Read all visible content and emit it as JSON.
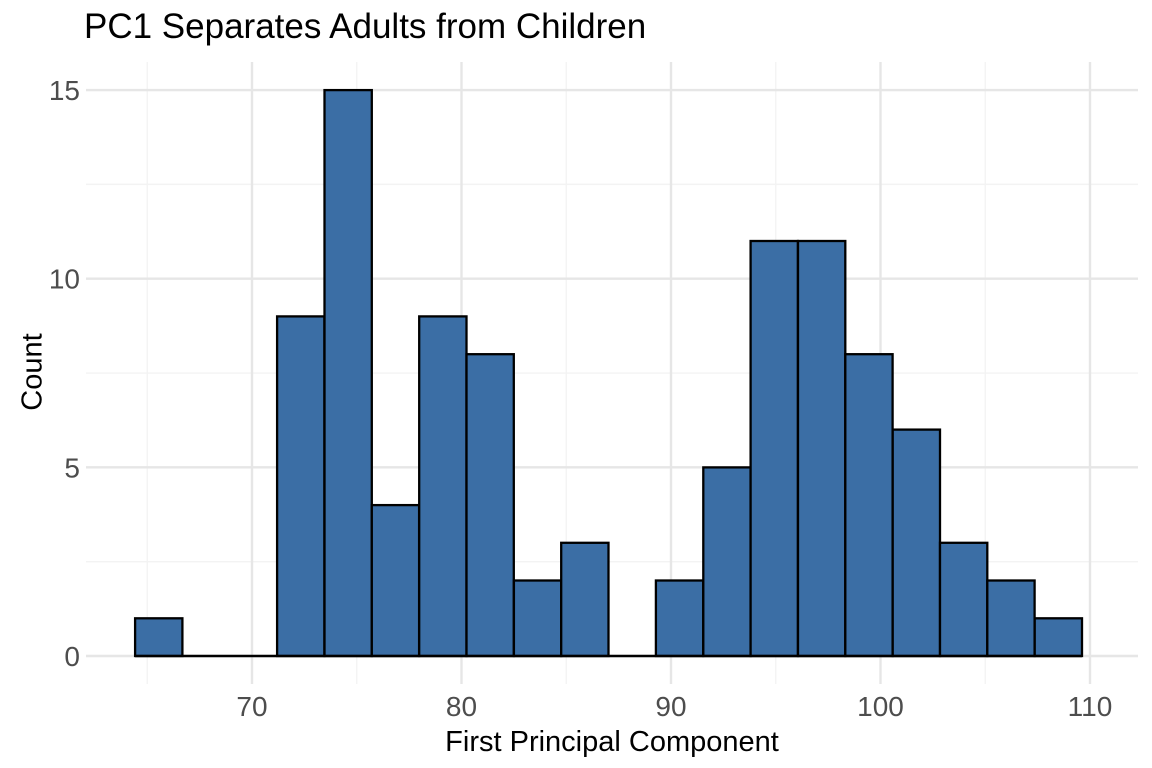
{
  "chart_data": {
    "type": "bar",
    "subtype": "histogram",
    "title": "PC1 Separates Adults from Children",
    "xlabel": "First Principal Component",
    "ylabel": "Count",
    "bins": {
      "start": 64.42,
      "width": 2.26,
      "counts": [
        1,
        0,
        0,
        9,
        15,
        4,
        9,
        8,
        2,
        3,
        0,
        2,
        5,
        11,
        11,
        8,
        6,
        3,
        2,
        1
      ]
    },
    "total_observations": 100,
    "x_ticks": [
      70,
      80,
      90,
      100,
      110
    ],
    "x_tick_labels": [
      "70",
      "80",
      "90",
      "100",
      "110"
    ],
    "x_minor_ticks": [
      65,
      75,
      85,
      95,
      105
    ],
    "y_ticks": [
      0,
      5,
      10,
      15
    ],
    "y_tick_labels": [
      "0",
      "5",
      "10",
      "15"
    ],
    "y_minor_ticks": [
      2.5,
      7.5,
      12.5
    ],
    "xlim": [
      62.0,
      112.4
    ],
    "ylim": [
      -0.75,
      15.75
    ],
    "grid": "major+minor",
    "legend": "none",
    "colors": {
      "bar_fill": "#3b6ea5",
      "bar_stroke": "#000000",
      "baseline": "#000000",
      "grid_major": "#e6e6e6",
      "grid_minor": "#f3f3f3",
      "tick_label": "#4d4d4d",
      "title": "#000000",
      "axis_title": "#000000",
      "background": "#ffffff"
    }
  }
}
